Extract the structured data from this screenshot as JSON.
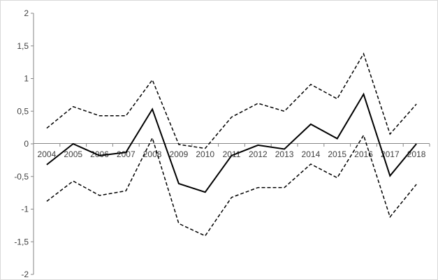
{
  "chart_data": {
    "type": "line",
    "title": "",
    "xlabel": "",
    "ylabel": "",
    "x": [
      "2004",
      "2005",
      "2006",
      "2007",
      "2008",
      "2009",
      "2010",
      "2011",
      "2012",
      "2013",
      "2014",
      "2015",
      "2016",
      "2017",
      "2018"
    ],
    "ylim": [
      -2,
      2
    ],
    "yticks": [
      "2",
      "1,5",
      "1",
      "0,5",
      "0",
      "-0,5",
      "-1",
      "-1,5",
      "-2"
    ],
    "ytick_values": [
      2,
      1.5,
      1,
      0.5,
      0,
      -0.5,
      -1,
      -1.5,
      -2
    ],
    "grid": false,
    "legend": "none",
    "series": [
      {
        "style": "solid",
        "color": "#000000",
        "values": [
          -0.32,
          0.0,
          -0.18,
          -0.13,
          0.53,
          -0.61,
          -0.74,
          -0.18,
          -0.02,
          -0.08,
          0.3,
          0.08,
          0.76,
          -0.49,
          0.0
        ]
      },
      {
        "style": "dashed",
        "color": "#000000",
        "values": [
          0.24,
          0.57,
          0.43,
          0.43,
          0.98,
          -0.01,
          -0.07,
          0.41,
          0.62,
          0.5,
          0.91,
          0.69,
          1.38,
          0.15,
          0.61
        ]
      },
      {
        "style": "dashed",
        "color": "#000000",
        "values": [
          -0.88,
          -0.57,
          -0.79,
          -0.72,
          0.09,
          -1.22,
          -1.41,
          -0.82,
          -0.67,
          -0.67,
          -0.31,
          -0.52,
          0.13,
          -1.12,
          -0.62
        ]
      }
    ]
  }
}
